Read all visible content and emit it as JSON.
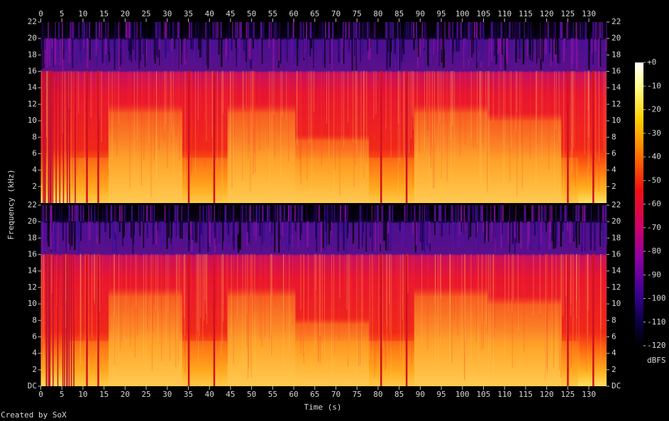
{
  "chart_data": {
    "type": "spectrogram",
    "x_label": "Time (s)",
    "y_label": "Frequency (kHz)",
    "xlim": [
      0,
      134.2
    ],
    "xticks": [
      0,
      5,
      10,
      15,
      20,
      25,
      30,
      35,
      40,
      45,
      50,
      55,
      60,
      65,
      70,
      75,
      80,
      85,
      90,
      95,
      100,
      105,
      110,
      115,
      120,
      125,
      130
    ],
    "channels": [
      {
        "ylim": [
          0,
          22
        ],
        "yticks": [
          2,
          4,
          6,
          8,
          10,
          12,
          14,
          16,
          18,
          20,
          22
        ]
      },
      {
        "ylim": [
          0,
          22
        ],
        "yticks": [
          {
            "value": 0,
            "label": "DC"
          },
          2,
          4,
          6,
          8,
          10,
          12,
          14,
          16,
          18,
          20,
          22
        ]
      }
    ],
    "colorbar": {
      "label": "dBFS",
      "lim": [
        -120,
        0
      ],
      "ticks": [
        {
          "value": 0,
          "label": "+0"
        },
        -10,
        -20,
        -30,
        -40,
        -50,
        -60,
        -70,
        -80,
        -90,
        -100,
        -110,
        -120
      ]
    }
  },
  "credit": "Created by SoX"
}
